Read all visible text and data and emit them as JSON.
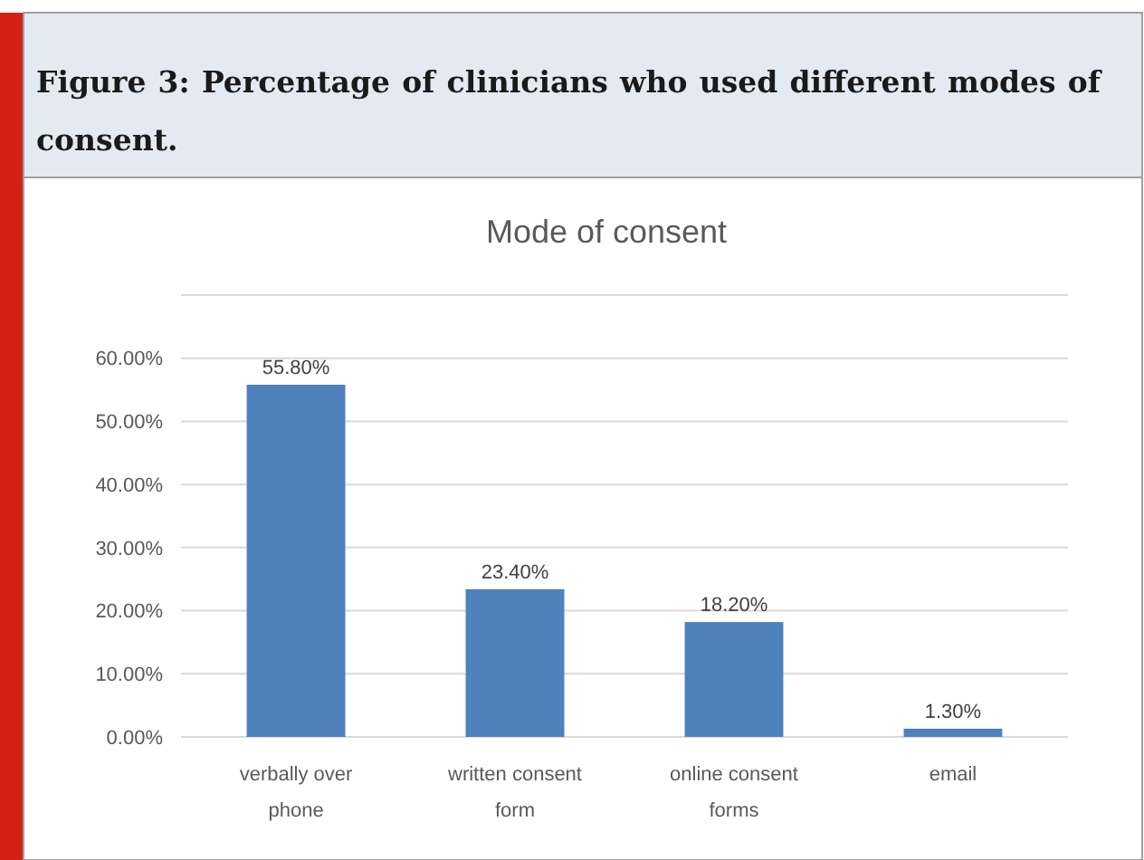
{
  "chart_data": {
    "type": "bar",
    "title": "Mode of consent",
    "annotations": [
      "Figure 3: Percentage of clinicians who used different modes of consent."
    ],
    "categories": [
      "verbally over phone",
      "written consent form",
      "online consent forms",
      "email"
    ],
    "values": [
      55.8,
      23.4,
      18.2,
      1.3
    ],
    "value_labels": [
      "55.80%",
      "23.40%",
      "18.20%",
      "1.30%"
    ],
    "color": "#4f81bd",
    "ylim": [
      0,
      70
    ],
    "yticks": [
      {
        "value": 0,
        "label": "0.00%"
      },
      {
        "value": 10,
        "label": "10.00%"
      },
      {
        "value": 20,
        "label": "20.00%"
      },
      {
        "value": 30,
        "label": "30.00%"
      },
      {
        "value": 40,
        "label": "40.00%"
      },
      {
        "value": 50,
        "label": "50.00%"
      },
      {
        "value": 60,
        "label": "60.00%"
      },
      {
        "value": 70,
        "label": null
      }
    ],
    "grid": "y"
  }
}
